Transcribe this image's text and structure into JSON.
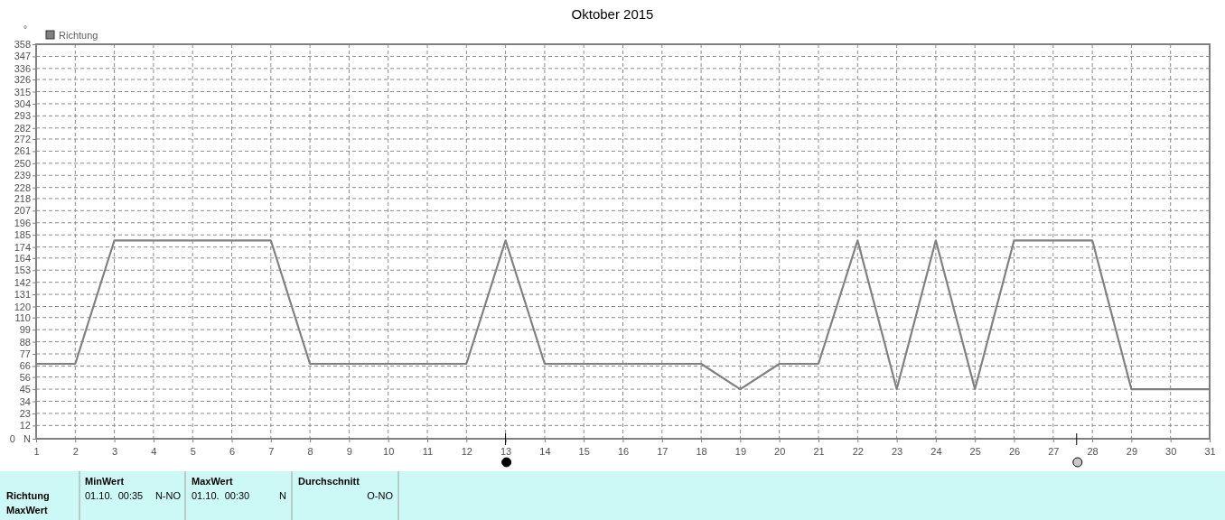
{
  "chart_data": {
    "type": "line",
    "title": "Oktober 2015",
    "ylabel": "°",
    "x": [
      1,
      2,
      3,
      4,
      5,
      6,
      7,
      8,
      9,
      10,
      11,
      12,
      13,
      14,
      15,
      16,
      17,
      18,
      19,
      20,
      21,
      22,
      23,
      24,
      25,
      26,
      27,
      28,
      29,
      30,
      31
    ],
    "series": [
      {
        "name": "Richtung",
        "color": "#808080",
        "values": [
          68,
          68,
          180,
          180,
          180,
          180,
          180,
          68,
          68,
          68,
          68,
          68,
          180,
          68,
          68,
          68,
          68,
          68,
          45,
          68,
          68,
          180,
          45,
          180,
          45,
          180,
          180,
          180,
          45,
          45,
          45
        ]
      }
    ],
    "xlim": [
      1,
      31
    ],
    "xticks": [
      1,
      2,
      3,
      4,
      5,
      6,
      7,
      8,
      9,
      10,
      11,
      12,
      13,
      14,
      15,
      16,
      17,
      18,
      19,
      20,
      21,
      22,
      23,
      24,
      25,
      26,
      27,
      28,
      29,
      30,
      31
    ],
    "ylim": [
      0,
      358
    ],
    "yticks": [
      {
        "value": 0,
        "label": "0   N"
      },
      12,
      23,
      34,
      45,
      56,
      66,
      77,
      88,
      99,
      110,
      120,
      131,
      142,
      153,
      164,
      174,
      185,
      196,
      207,
      218,
      228,
      239,
      250,
      261,
      272,
      282,
      293,
      304,
      315,
      326,
      336,
      347,
      358
    ],
    "grid": true,
    "legend": "top left",
    "line_style": "solid",
    "marker": "none",
    "annotations": [
      "Richtung",
      "MaxWert",
      "MinWert",
      "01.10.  00:35",
      "N-NO",
      "MaxWert",
      "01.10.  00:30",
      "N",
      "Durchschnitt",
      "O-NO"
    ]
  }
}
